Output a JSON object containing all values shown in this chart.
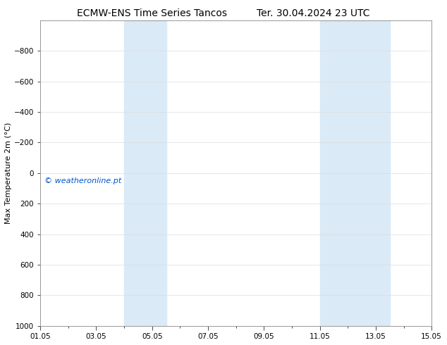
{
  "title_left": "ECMW-ENS Time Series Tancos",
  "title_right": "Ter. 30.04.2024 23 UTC",
  "ylabel": "Max Temperature 2m (°C)",
  "yticks": [
    -800,
    -600,
    -400,
    -200,
    0,
    200,
    400,
    600,
    800,
    1000
  ],
  "xtick_labels": [
    "01.05",
    "03.05",
    "05.05",
    "07.05",
    "09.05",
    "11.05",
    "13.05",
    "15.05"
  ],
  "xtick_positions": [
    0,
    2,
    4,
    6,
    8,
    10,
    12,
    14
  ],
  "shade_bands": [
    {
      "x_start": 3.0,
      "x_end": 4.5
    },
    {
      "x_start": 10.0,
      "x_end": 12.5
    }
  ],
  "shade_color": "#daeaf6",
  "plot_bg_color": "#ffffff",
  "watermark_text": "© weatheronline.pt",
  "watermark_color": "#0055cc",
  "watermark_fontsize": 8,
  "title_fontsize": 10,
  "ylabel_fontsize": 8,
  "tick_fontsize": 7.5,
  "figure_bg": "#ffffff",
  "border_color": "#888888",
  "grid_color": "#dddddd",
  "minor_tick_count": 15
}
